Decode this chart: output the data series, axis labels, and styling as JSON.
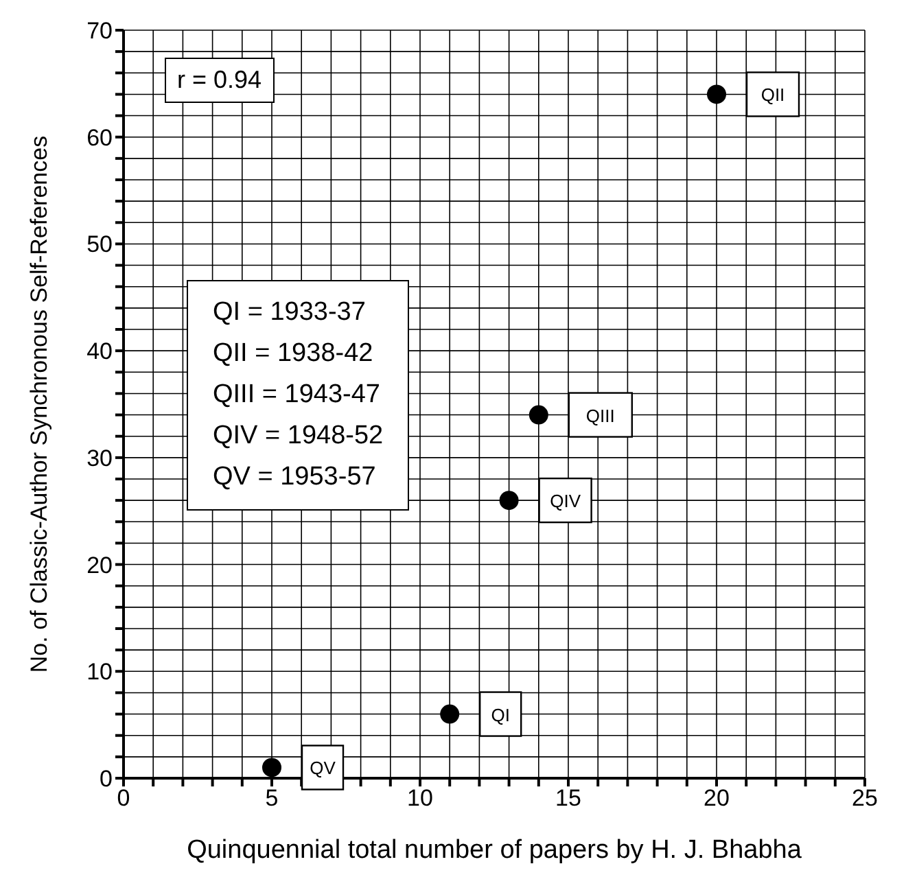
{
  "chart_data": {
    "type": "scatter",
    "xlabel": "Quinquennial total number of papers by H. J. Bhabha",
    "ylabel": "No. of Classic-Author Synchronous Self-References",
    "x": [
      5,
      11,
      13,
      14,
      20
    ],
    "values": [
      1,
      6,
      26,
      34,
      64
    ],
    "color": "#000000",
    "marker": "circle",
    "xlim": [
      0,
      25
    ],
    "ylim": [
      0,
      70
    ],
    "xticks": [
      0,
      {
        "value": 1,
        "label": null
      },
      {
        "value": 2,
        "label": null
      },
      {
        "value": 3,
        "label": null
      },
      {
        "value": 4,
        "label": null
      },
      5,
      {
        "value": 6,
        "label": null
      },
      {
        "value": 7,
        "label": null
      },
      {
        "value": 8,
        "label": null
      },
      {
        "value": 9,
        "label": null
      },
      10,
      {
        "value": 11,
        "label": null
      },
      {
        "value": 12,
        "label": null
      },
      {
        "value": 13,
        "label": null
      },
      {
        "value": 14,
        "label": null
      },
      15,
      {
        "value": 16,
        "label": null
      },
      {
        "value": 17,
        "label": null
      },
      {
        "value": 18,
        "label": null
      },
      {
        "value": 19,
        "label": null
      },
      20,
      {
        "value": 21,
        "label": null
      },
      {
        "value": 22,
        "label": null
      },
      {
        "value": 23,
        "label": null
      },
      {
        "value": 24,
        "label": null
      },
      25
    ],
    "yticks": [
      0,
      {
        "value": 2,
        "label": null
      },
      {
        "value": 4,
        "label": null
      },
      {
        "value": 6,
        "label": null
      },
      {
        "value": 8,
        "label": null
      },
      10,
      {
        "value": 12,
        "label": null
      },
      {
        "value": 14,
        "label": null
      },
      {
        "value": 16,
        "label": null
      },
      {
        "value": 18,
        "label": null
      },
      20,
      {
        "value": 22,
        "label": null
      },
      {
        "value": 24,
        "label": null
      },
      {
        "value": 26,
        "label": null
      },
      {
        "value": 28,
        "label": null
      },
      30,
      {
        "value": 32,
        "label": null
      },
      {
        "value": 34,
        "label": null
      },
      {
        "value": 36,
        "label": null
      },
      {
        "value": 38,
        "label": null
      },
      40,
      {
        "value": 42,
        "label": null
      },
      {
        "value": 44,
        "label": null
      },
      {
        "value": 46,
        "label": null
      },
      {
        "value": 48,
        "label": null
      },
      50,
      {
        "value": 52,
        "label": null
      },
      {
        "value": 54,
        "label": null
      },
      {
        "value": 56,
        "label": null
      },
      {
        "value": 58,
        "label": null
      },
      60,
      {
        "value": 62,
        "label": null
      },
      {
        "value": 64,
        "label": null
      },
      {
        "value": 66,
        "label": null
      },
      {
        "value": 68,
        "label": null
      },
      70
    ],
    "grid": true,
    "legend": false,
    "annotations": [
      "r = 0.94",
      {
        "text": "QII",
        "x": 20,
        "y": 64
      },
      {
        "text": "QIII",
        "x": 14,
        "y": 34
      },
      {
        "text": "QIV",
        "x": 13,
        "y": 26
      },
      {
        "text": "QI",
        "x": 11,
        "y": 6
      },
      {
        "text": "QV",
        "x": 5,
        "y": 1
      },
      "QI = 1933-37",
      "QII = 1938-42",
      "QIII = 1943-47",
      "QIV = 1948-52",
      "QV = 1953-57"
    ]
  }
}
